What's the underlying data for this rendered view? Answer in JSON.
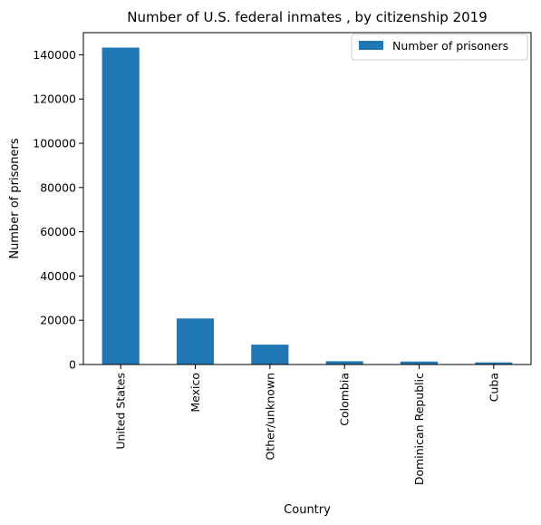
{
  "chart_data": {
    "type": "bar",
    "title": "Number of U.S. federal inmates , by citizenship 2019",
    "xlabel": "Country",
    "ylabel": "Number of prisoners",
    "categories": [
      "United States",
      "Mexico",
      "Other/unknown",
      "Colombia",
      "Dominican Republic",
      "Cuba"
    ],
    "series": [
      {
        "name": "Number of prisoners",
        "color": "#1f77b4",
        "values": [
          143239,
          20804,
          8976,
          1483,
          1341,
          958
        ]
      }
    ],
    "ylim": [
      0,
      150000
    ],
    "yticks": [
      0,
      20000,
      40000,
      60000,
      80000,
      100000,
      120000,
      140000
    ],
    "legend_position": "top-right",
    "grid": false
  }
}
